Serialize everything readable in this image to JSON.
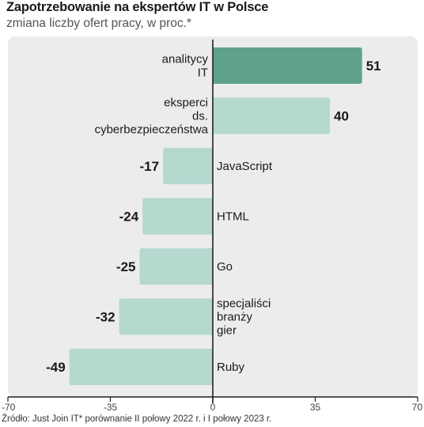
{
  "title": "Zapotrzebowanie na ekspertów IT w Polsce",
  "subtitle": "zmiana liczby ofert pracy, w proc.*",
  "source": "Źródło: Just Join IT* porównanie II połowy 2022 r. i I połowy 2023 r.",
  "colors": {
    "highlight": "#5ea28d",
    "bar": "#b5d8cf",
    "panel": "#ececec",
    "axis": "#222222"
  },
  "chart_data": {
    "type": "bar",
    "orientation": "horizontal",
    "categories": [
      [
        "analitycy",
        "IT"
      ],
      [
        "eksperci",
        "ds.",
        "cyberbezpieczeństwa"
      ],
      [
        "JavaScript"
      ],
      [
        "HTML"
      ],
      [
        "Go"
      ],
      [
        "specjaliści",
        "branży",
        "gier"
      ],
      [
        "Ruby"
      ]
    ],
    "values": [
      51,
      40,
      -17,
      -24,
      -25,
      -32,
      -49
    ],
    "value_labels": [
      "51",
      "40",
      "-17",
      "-24",
      "-25",
      "-32",
      "-49"
    ],
    "highlight_index": 0,
    "xlim": [
      -70,
      70
    ],
    "xticks": [
      -70,
      -35,
      0,
      35,
      70
    ],
    "xtick_labels": [
      "-70",
      "-35",
      "0",
      "35",
      "70"
    ],
    "grid": false
  }
}
